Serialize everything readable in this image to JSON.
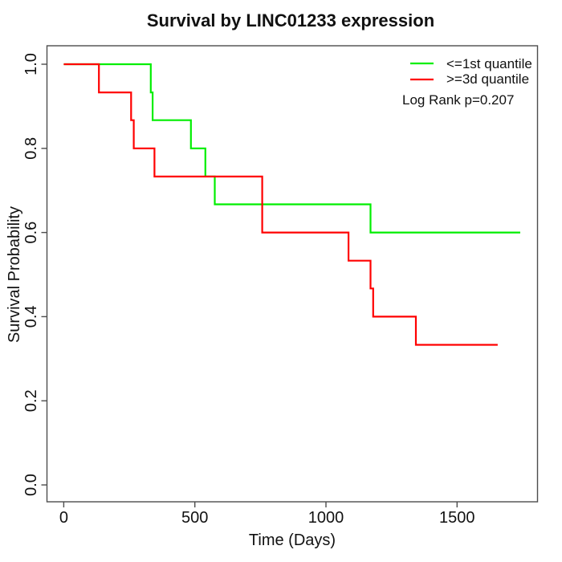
{
  "chart_data": {
    "type": "line",
    "subtype": "kaplan-meier-step",
    "title": "Survival by LINC01233 expression",
    "xlabel": "Time (Days)",
    "ylabel": "Survival Probability",
    "xlim": [
      0,
      1806
    ],
    "ylim": [
      0.0,
      1.0
    ],
    "grid": false,
    "legend_position": "top-right",
    "x_ticks": {
      "values": [
        0,
        500,
        1000,
        1500
      ],
      "labels": [
        "0",
        "500",
        "1000",
        "1500"
      ]
    },
    "y_ticks": {
      "values": [
        0.0,
        0.2,
        0.4,
        0.6,
        0.8,
        1.0
      ],
      "labels": [
        "0.0",
        "0.2",
        "0.4",
        "0.6",
        "0.8",
        "1.0"
      ]
    },
    "series": [
      {
        "name": "<=1st quantile",
        "color": "#00ee00",
        "points": [
          [
            0,
            1.0
          ],
          [
            332,
            1.0
          ],
          [
            332,
            0.933
          ],
          [
            339,
            0.933
          ],
          [
            339,
            0.867
          ],
          [
            485,
            0.867
          ],
          [
            485,
            0.8
          ],
          [
            540,
            0.8
          ],
          [
            540,
            0.733
          ],
          [
            576,
            0.733
          ],
          [
            576,
            0.667
          ],
          [
            1170,
            0.667
          ],
          [
            1170,
            0.6
          ],
          [
            1741,
            0.6
          ]
        ]
      },
      {
        "name": ">=3d quantile",
        "color": "#ff0000",
        "points": [
          [
            0,
            1.0
          ],
          [
            134,
            1.0
          ],
          [
            134,
            0.933
          ],
          [
            257,
            0.933
          ],
          [
            257,
            0.867
          ],
          [
            267,
            0.867
          ],
          [
            267,
            0.8
          ],
          [
            346,
            0.8
          ],
          [
            346,
            0.733
          ],
          [
            757,
            0.733
          ],
          [
            757,
            0.6
          ],
          [
            1086,
            0.6
          ],
          [
            1086,
            0.533
          ],
          [
            1170,
            0.533
          ],
          [
            1170,
            0.467
          ],
          [
            1180,
            0.467
          ],
          [
            1180,
            0.4
          ],
          [
            1343,
            0.4
          ],
          [
            1343,
            0.333
          ],
          [
            1655,
            0.333
          ]
        ]
      }
    ],
    "annotation": "Log Rank p=0.207"
  },
  "colors": {
    "background": "#ffffff",
    "axis": "#4d4d4d",
    "text": "#111111",
    "series_green": "#00ee00",
    "series_red": "#ff0000"
  }
}
